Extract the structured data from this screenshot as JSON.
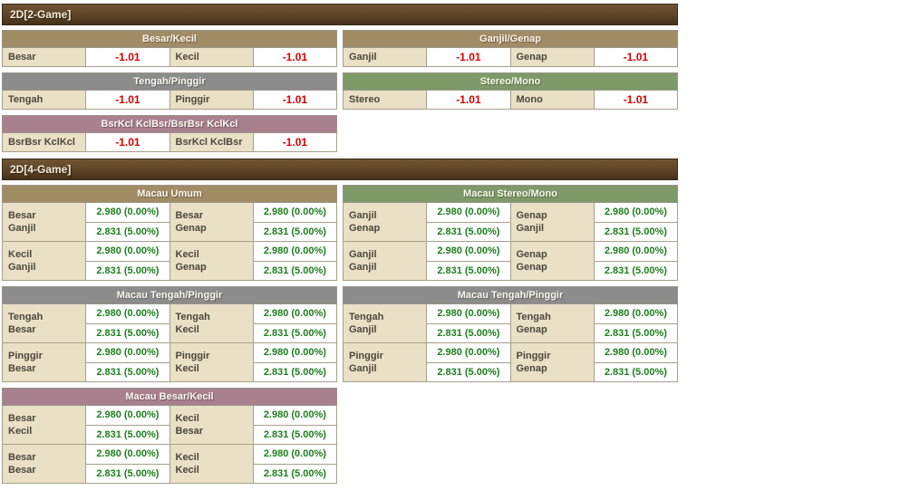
{
  "colors": {
    "bar_top": "#6f5533",
    "bar_bottom": "#453019",
    "header_brown": "#a28c66",
    "header_gray": "#8c8c8c",
    "header_green": "#7d9a68",
    "header_mauve": "#a9808e",
    "label_bg": "#e9e0c6",
    "value_red": "#d60000",
    "value_green": "#1e7d1e"
  },
  "section_2game": {
    "title": "2D[2-Game]",
    "tables": [
      {
        "title": "Besar/Kecil",
        "theme": "brown",
        "cells": [
          {
            "label": "Besar",
            "value": "-1.01"
          },
          {
            "label": "Kecil",
            "value": "-1.01"
          }
        ]
      },
      {
        "title": "Ganjil/Genap",
        "theme": "brown",
        "cells": [
          {
            "label": "Ganjil",
            "value": "-1.01"
          },
          {
            "label": "Genap",
            "value": "-1.01"
          }
        ]
      },
      {
        "title": "Tengah/Pinggir",
        "theme": "gray",
        "cells": [
          {
            "label": "Tengah",
            "value": "-1.01"
          },
          {
            "label": "Pinggir",
            "value": "-1.01"
          }
        ]
      },
      {
        "title": "Stereo/Mono",
        "theme": "green",
        "cells": [
          {
            "label": "Stereo",
            "value": "-1.01"
          },
          {
            "label": "Mono",
            "value": "-1.01"
          }
        ]
      },
      {
        "title": "BsrKcl KclBsr/BsrBsr KclKcl",
        "theme": "mauve",
        "cells": [
          {
            "label": "BsrBsr KclKcl",
            "value": "-1.01"
          },
          {
            "label": "BsrKcl KclBsr",
            "value": "-1.01"
          }
        ]
      }
    ]
  },
  "section_4game": {
    "title": "2D[4-Game]",
    "tables": [
      {
        "title": "Macau Umum",
        "theme": "brown",
        "rows": [
          [
            {
              "label": "Besar\nGanjil",
              "v1": "2.980 (0.00%)",
              "v2": "2.831 (5.00%)"
            },
            {
              "label": "Besar\nGenap",
              "v1": "2.980 (0.00%)",
              "v2": "2.831 (5.00%)"
            }
          ],
          [
            {
              "label": "Kecil\nGanjil",
              "v1": "2.980 (0.00%)",
              "v2": "2.831 (5.00%)"
            },
            {
              "label": "Kecil\nGenap",
              "v1": "2.980 (0.00%)",
              "v2": "2.831 (5.00%)"
            }
          ]
        ]
      },
      {
        "title": "Macau Stereo/Mono",
        "theme": "green",
        "rows": [
          [
            {
              "label": "Ganjil\nGenap",
              "v1": "2.980 (0.00%)",
              "v2": "2.831 (5.00%)"
            },
            {
              "label": "Genap\nGanjil",
              "v1": "2.980 (0.00%)",
              "v2": "2.831 (5.00%)"
            }
          ],
          [
            {
              "label": "Ganjil\nGanjil",
              "v1": "2.980 (0.00%)",
              "v2": "2.831 (5.00%)"
            },
            {
              "label": "Genap\nGenap",
              "v1": "2.980 (0.00%)",
              "v2": "2.831 (5.00%)"
            }
          ]
        ]
      },
      {
        "title": "Macau Tengah/Pinggir",
        "theme": "gray",
        "rows": [
          [
            {
              "label": "Tengah\nBesar",
              "v1": "2.980 (0.00%)",
              "v2": "2.831 (5.00%)"
            },
            {
              "label": "Tengah\nKecil",
              "v1": "2.980 (0.00%)",
              "v2": "2.831 (5.00%)"
            }
          ],
          [
            {
              "label": "Pinggir\nBesar",
              "v1": "2.980 (0.00%)",
              "v2": "2.831 (5.00%)"
            },
            {
              "label": "Pinggir\nKecil",
              "v1": "2.980 (0.00%)",
              "v2": "2.831 (5.00%)"
            }
          ]
        ]
      },
      {
        "title": "Macau Tengah/Pinggir",
        "theme": "gray",
        "rows": [
          [
            {
              "label": "Tengah\nGanjil",
              "v1": "2.980 (0.00%)",
              "v2": "2.831 (5.00%)"
            },
            {
              "label": "Tengah\nGenap",
              "v1": "2.980 (0.00%)",
              "v2": "2.831 (5.00%)"
            }
          ],
          [
            {
              "label": "Pinggir\nGanjil",
              "v1": "2.980 (0.00%)",
              "v2": "2.831 (5.00%)"
            },
            {
              "label": "Pinggir\nGenap",
              "v1": "2.980 (0.00%)",
              "v2": "2.831 (5.00%)"
            }
          ]
        ]
      },
      {
        "title": "Macau Besar/Kecil",
        "theme": "mauve",
        "rows": [
          [
            {
              "label": "Besar\nKecil",
              "v1": "2.980 (0.00%)",
              "v2": "2.831 (5.00%)"
            },
            {
              "label": "Kecil\nBesar",
              "v1": "2.980 (0.00%)",
              "v2": "2.831 (5.00%)"
            }
          ],
          [
            {
              "label": "Besar\nBesar",
              "v1": "2.980 (0.00%)",
              "v2": "2.831 (5.00%)"
            },
            {
              "label": "Kecil\nKecil",
              "v1": "2.980 (0.00%)",
              "v2": "2.831 (5.00%)"
            }
          ]
        ]
      }
    ]
  }
}
